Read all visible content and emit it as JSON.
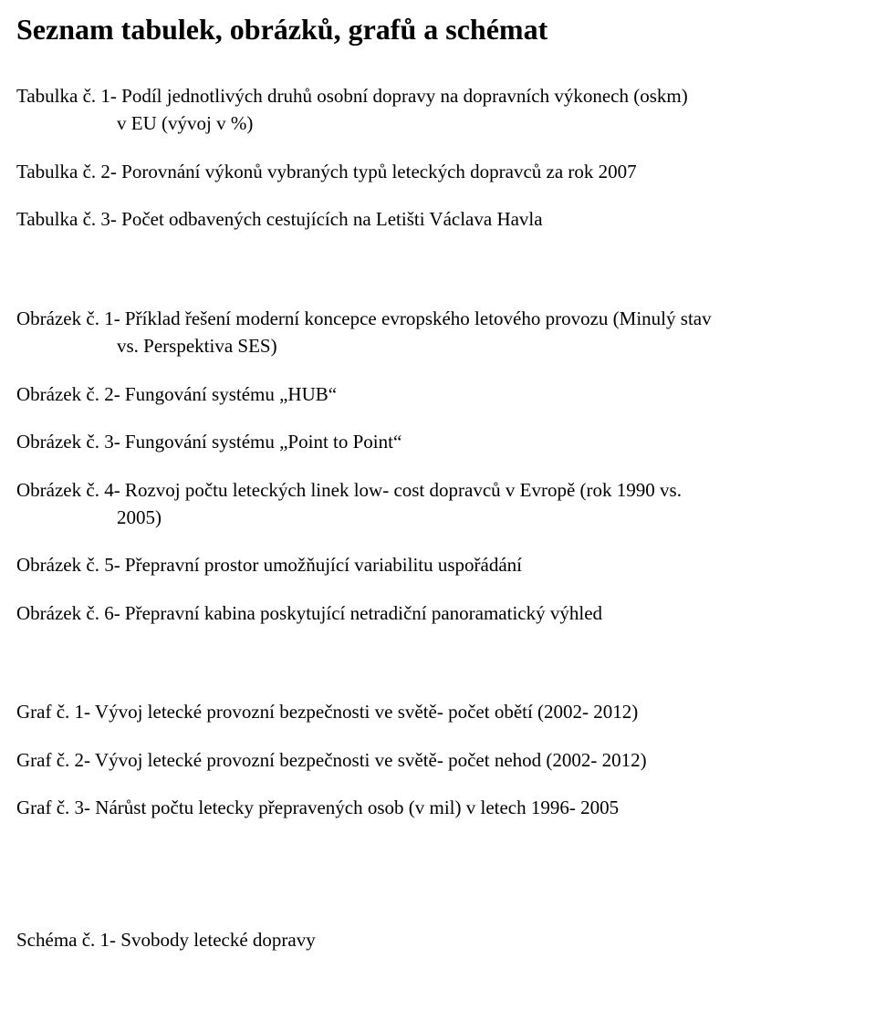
{
  "title": "Seznam tabulek, obrázků, grafů a schémat",
  "tables": {
    "t1_line1": "Tabulka č. 1- Podíl jednotlivých druhů osobní dopravy na dopravních výkonech (oskm)",
    "t1_line2": "v EU (vývoj v %)",
    "t2": "Tabulka č. 2- Porovnání výkonů vybraných typů leteckých dopravců za rok 2007",
    "t3": "Tabulka č. 3- Počet odbavených cestujících na Letišti Václava Havla"
  },
  "figures": {
    "f1_line1": "Obrázek č. 1- Příklad řešení moderní koncepce evropského letového provozu (Minulý stav",
    "f1_line2": "vs. Perspektiva SES)",
    "f2": "Obrázek č. 2- Fungování systému „HUB“",
    "f3": "Obrázek č. 3- Fungování systému „Point to Point“",
    "f4_line1": "Obrázek č. 4- Rozvoj počtu leteckých linek low- cost dopravců v Evropě (rok 1990 vs.",
    "f4_line2": "2005)",
    "f5": "Obrázek č. 5- Přepravní prostor umožňující variabilitu uspořádání",
    "f6": "Obrázek č. 6- Přepravní kabina poskytující netradiční panoramatický výhled"
  },
  "graphs": {
    "g1": "Graf č. 1- Vývoj letecké provozní bezpečnosti ve světě- počet obětí (2002- 2012)",
    "g2": "Graf č. 2- Vývoj letecké provozní bezpečnosti ve světě- počet nehod (2002- 2012)",
    "g3": "Graf č. 3- Nárůst počtu letecky přepravených osob (v mil) v letech 1996- 2005"
  },
  "schemes": {
    "s1": "Schéma č. 1- Svobody letecké dopravy"
  }
}
